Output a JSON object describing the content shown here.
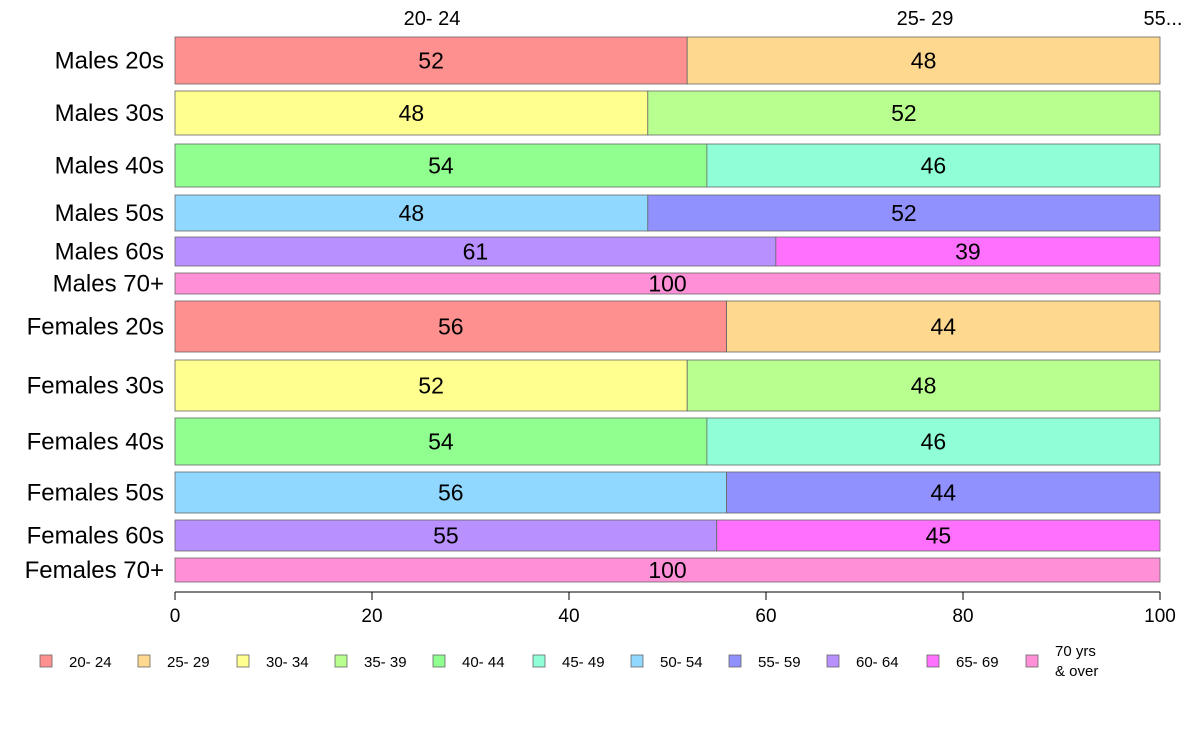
{
  "chart_data": {
    "type": "bar",
    "orientation": "horizontal",
    "stacked": true,
    "percent": true,
    "rows": [
      {
        "label": "Males 20s",
        "segments": [
          {
            "group": "20- 24",
            "value": 52
          },
          {
            "group": "25- 29",
            "value": 48
          }
        ]
      },
      {
        "label": "Males 30s",
        "segments": [
          {
            "group": "30- 34",
            "value": 48
          },
          {
            "group": "35- 39",
            "value": 52
          }
        ]
      },
      {
        "label": "Males 40s",
        "segments": [
          {
            "group": "40- 44",
            "value": 54
          },
          {
            "group": "45- 49",
            "value": 46
          }
        ]
      },
      {
        "label": "Males 50s",
        "segments": [
          {
            "group": "50- 54",
            "value": 48
          },
          {
            "group": "55- 59",
            "value": 52
          }
        ]
      },
      {
        "label": "Males 60s",
        "segments": [
          {
            "group": "60- 64",
            "value": 61
          },
          {
            "group": "65- 69",
            "value": 39
          }
        ]
      },
      {
        "label": "Males 70+",
        "segments": [
          {
            "group": "70 yrs & over",
            "value": 100
          }
        ]
      },
      {
        "label": "Females 20s",
        "segments": [
          {
            "group": "20- 24",
            "value": 56
          },
          {
            "group": "25- 29",
            "value": 44
          }
        ]
      },
      {
        "label": "Females 30s",
        "segments": [
          {
            "group": "30- 34",
            "value": 52
          },
          {
            "group": "35- 39",
            "value": 48
          }
        ]
      },
      {
        "label": "Females 40s",
        "segments": [
          {
            "group": "40- 44",
            "value": 54
          },
          {
            "group": "45- 49",
            "value": 46
          }
        ]
      },
      {
        "label": "Females 50s",
        "segments": [
          {
            "group": "50- 54",
            "value": 56
          },
          {
            "group": "55- 59",
            "value": 44
          }
        ]
      },
      {
        "label": "Females 60s",
        "segments": [
          {
            "group": "60- 64",
            "value": 55
          },
          {
            "group": "65- 69",
            "value": 45
          }
        ]
      },
      {
        "label": "Females 70+",
        "segments": [
          {
            "group": "70 yrs & over",
            "value": 100
          }
        ]
      }
    ],
    "top_labels": [
      "20- 24",
      "25- 29",
      "55..."
    ],
    "xlim": [
      0,
      100
    ],
    "xticks": [
      0,
      20,
      40,
      60,
      80,
      100
    ],
    "grid": false,
    "legend_position": "bottom",
    "legend": [
      {
        "label": "20- 24",
        "color": "#ff9090"
      },
      {
        "label": "25- 29",
        "color": "#ffd890"
      },
      {
        "label": "30- 34",
        "color": "#ffff90"
      },
      {
        "label": "35- 39",
        "color": "#b8ff90"
      },
      {
        "label": "40- 44",
        "color": "#90ff90"
      },
      {
        "label": "45- 49",
        "color": "#90ffd8"
      },
      {
        "label": "50- 54",
        "color": "#90d8ff"
      },
      {
        "label": "55- 59",
        "color": "#9090ff"
      },
      {
        "label": "60- 64",
        "color": "#b890ff"
      },
      {
        "label": "65- 69",
        "color": "#ff70ff"
      },
      {
        "label": "70 yrs\n& over",
        "color": "#ff90d8"
      }
    ]
  }
}
